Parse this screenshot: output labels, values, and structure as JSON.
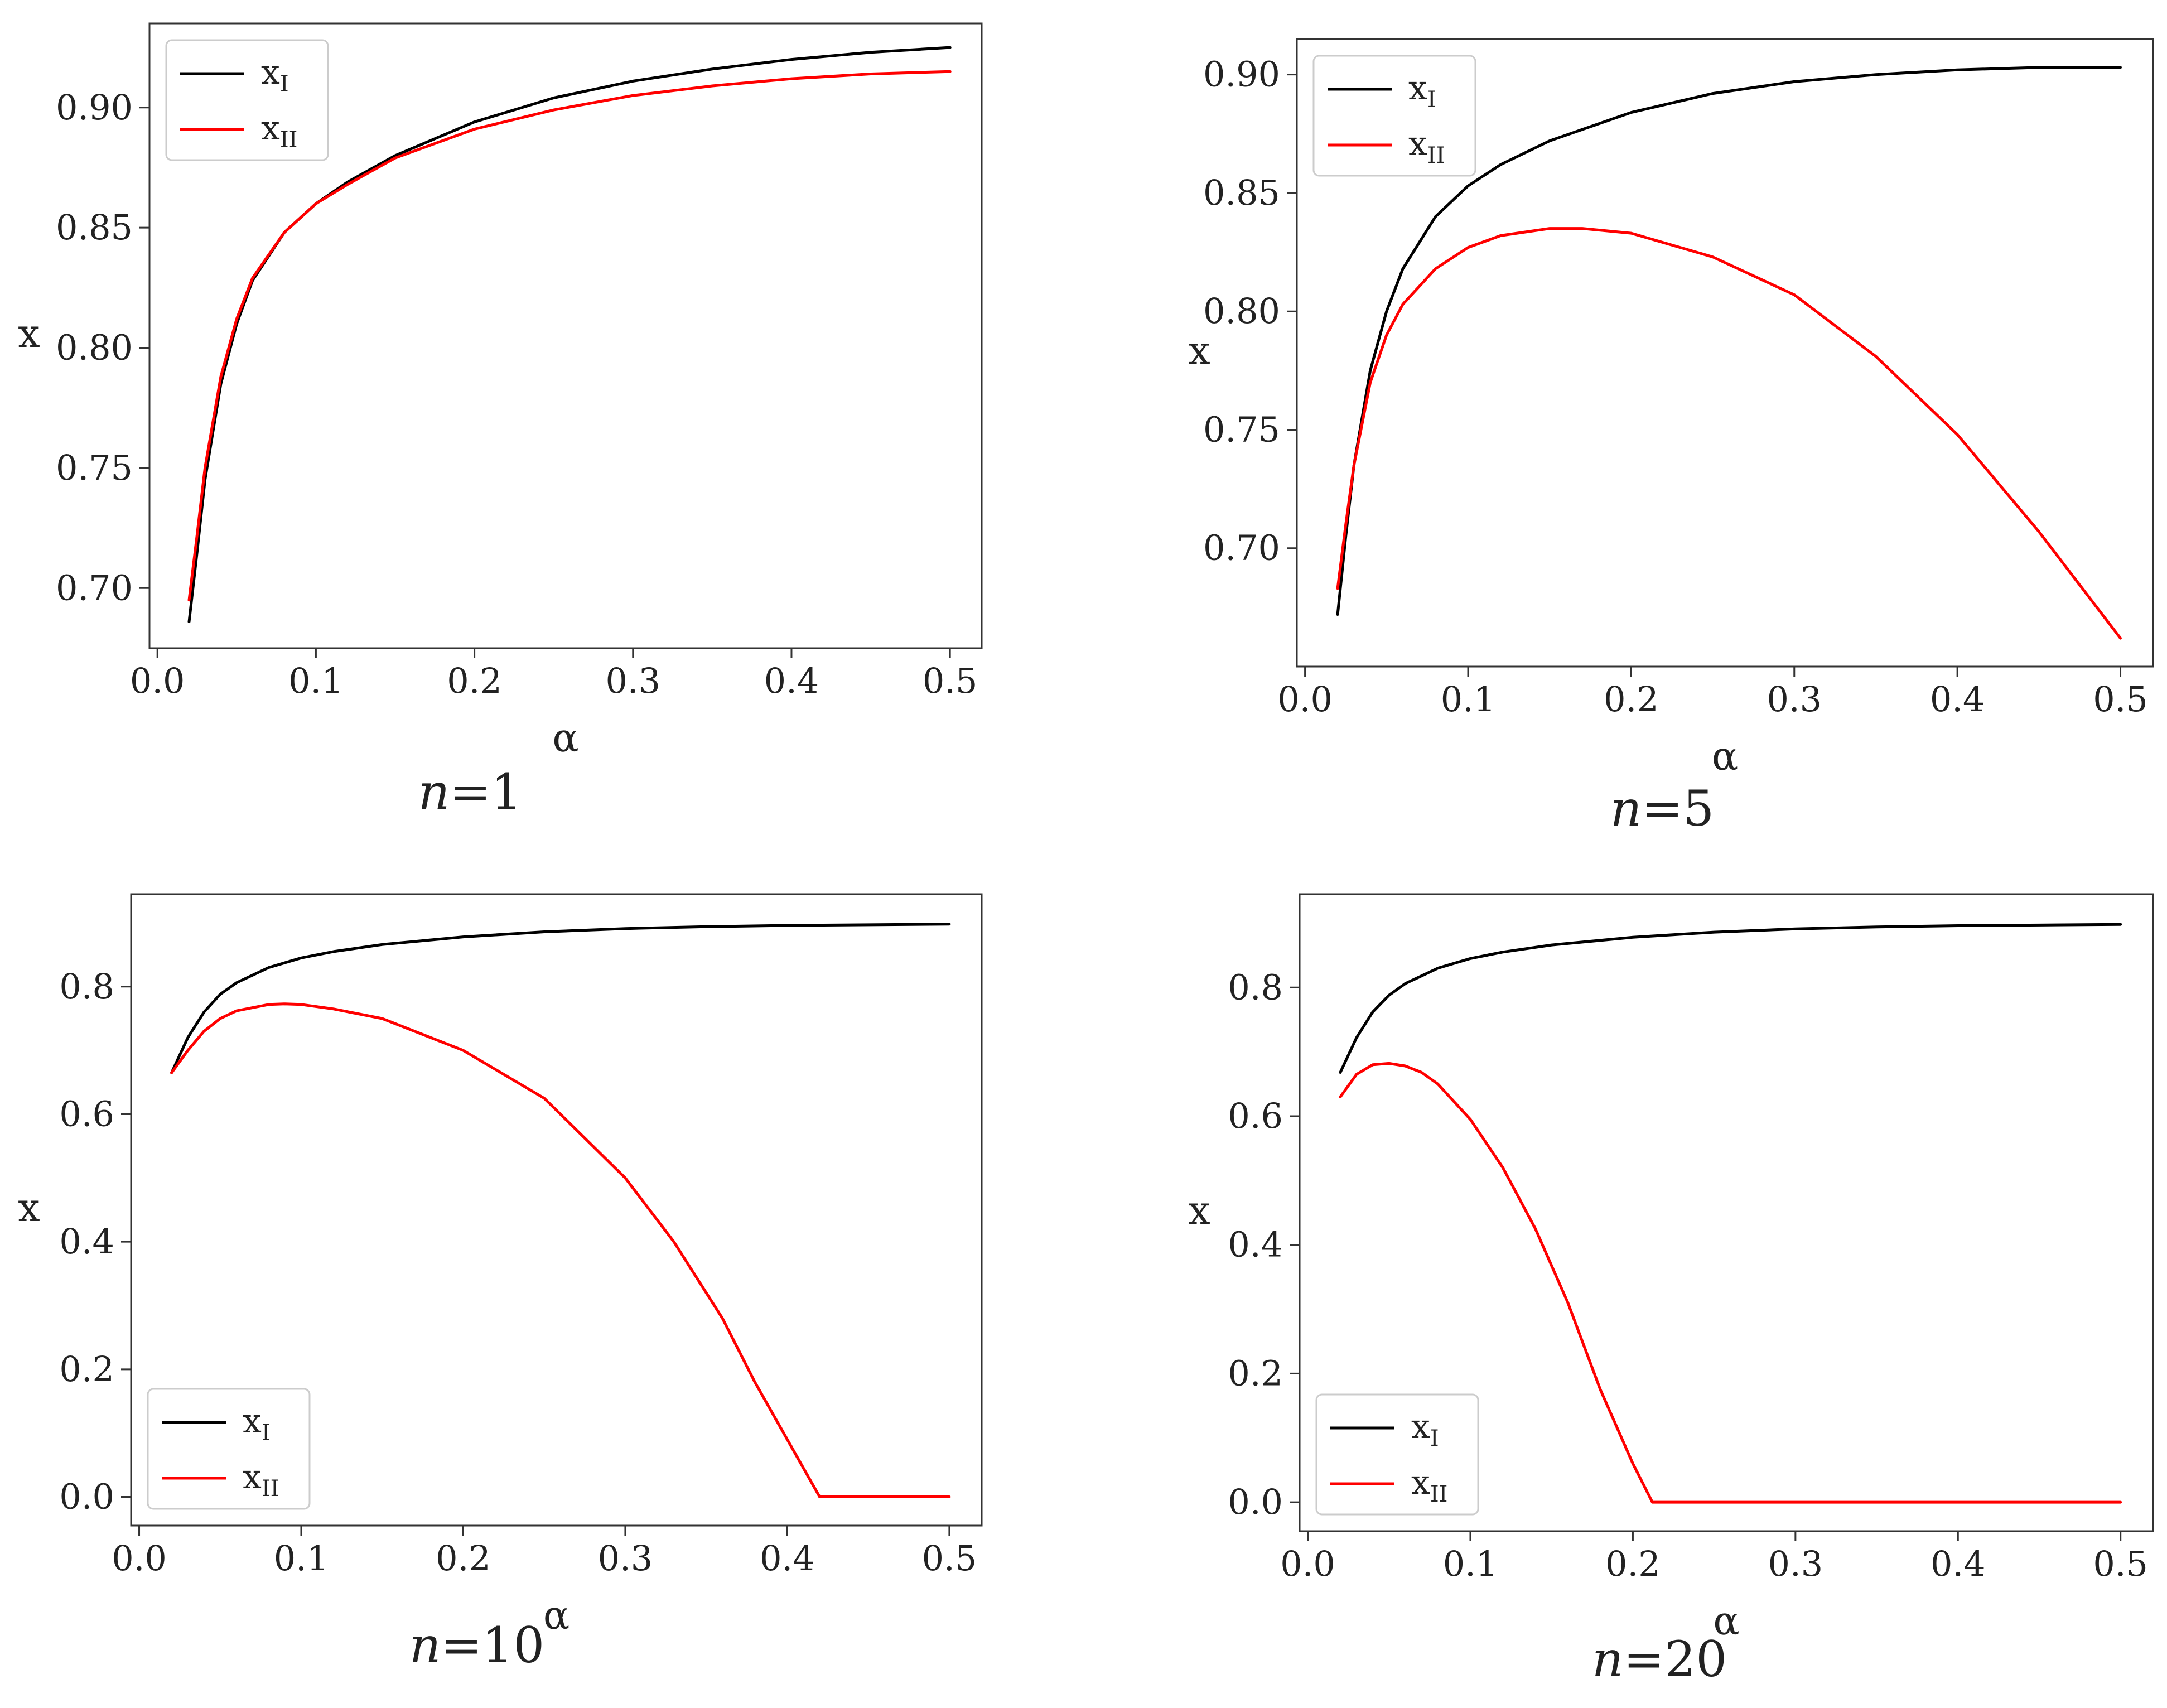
{
  "figure": {
    "colors": {
      "x_I": "#000000",
      "x_II": "#ff0000",
      "axes": "#333333",
      "legend_border": "#cccccc"
    }
  },
  "chart_data": [
    {
      "type": "line",
      "title_var": "n",
      "title_rest": "=1",
      "xlabel": "α",
      "ylabel": "x",
      "xlim": [
        -0.005,
        0.52
      ],
      "ylim": [
        0.675,
        0.935
      ],
      "xticks": [
        0.0,
        0.1,
        0.2,
        0.3,
        0.4,
        0.5
      ],
      "xtick_labels": [
        "0.0",
        "0.1",
        "0.2",
        "0.3",
        "0.4",
        "0.5"
      ],
      "yticks": [
        0.7,
        0.75,
        0.8,
        0.85,
        0.9
      ],
      "ytick_labels": [
        "0.70",
        "0.75",
        "0.80",
        "0.85",
        "0.90"
      ],
      "legend": {
        "position": "upper-left",
        "entries": [
          {
            "base": "x",
            "sub": "I"
          },
          {
            "base": "x",
            "sub": "II"
          }
        ]
      },
      "series": [
        {
          "sub": "I",
          "color": "#000000",
          "x": [
            0.02,
            0.025,
            0.03,
            0.04,
            0.05,
            0.06,
            0.08,
            0.1,
            0.12,
            0.15,
            0.2,
            0.25,
            0.3,
            0.35,
            0.4,
            0.45,
            0.5
          ],
          "y": [
            0.686,
            0.715,
            0.745,
            0.785,
            0.81,
            0.828,
            0.848,
            0.86,
            0.869,
            0.88,
            0.894,
            0.904,
            0.911,
            0.916,
            0.92,
            0.923,
            0.925
          ]
        },
        {
          "sub": "II",
          "color": "#ff0000",
          "x": [
            0.02,
            0.025,
            0.03,
            0.04,
            0.05,
            0.06,
            0.08,
            0.1,
            0.12,
            0.15,
            0.2,
            0.25,
            0.3,
            0.35,
            0.4,
            0.45,
            0.5
          ],
          "y": [
            0.695,
            0.722,
            0.75,
            0.788,
            0.812,
            0.829,
            0.848,
            0.86,
            0.868,
            0.879,
            0.891,
            0.899,
            0.905,
            0.909,
            0.912,
            0.914,
            0.915
          ]
        }
      ]
    },
    {
      "type": "line",
      "title_var": "n",
      "title_rest": "=5",
      "xlabel": "α",
      "ylabel": "x",
      "xlim": [
        -0.005,
        0.52
      ],
      "ylim": [
        0.65,
        0.915
      ],
      "xticks": [
        0.0,
        0.1,
        0.2,
        0.3,
        0.4,
        0.5
      ],
      "xtick_labels": [
        "0.0",
        "0.1",
        "0.2",
        "0.3",
        "0.4",
        "0.5"
      ],
      "yticks": [
        0.7,
        0.75,
        0.8,
        0.85,
        0.9
      ],
      "ytick_labels": [
        "0.70",
        "0.75",
        "0.80",
        "0.85",
        "0.90"
      ],
      "legend": {
        "position": "upper-left",
        "entries": [
          {
            "base": "x",
            "sub": "I"
          },
          {
            "base": "x",
            "sub": "II"
          }
        ]
      },
      "series": [
        {
          "sub": "I",
          "color": "#000000",
          "x": [
            0.02,
            0.025,
            0.03,
            0.04,
            0.05,
            0.06,
            0.08,
            0.1,
            0.12,
            0.15,
            0.2,
            0.25,
            0.3,
            0.35,
            0.4,
            0.45,
            0.5
          ],
          "y": [
            0.672,
            0.705,
            0.735,
            0.775,
            0.8,
            0.818,
            0.84,
            0.853,
            0.862,
            0.872,
            0.884,
            0.892,
            0.897,
            0.9,
            0.902,
            0.903,
            0.903
          ]
        },
        {
          "sub": "II",
          "color": "#ff0000",
          "x": [
            0.02,
            0.025,
            0.03,
            0.04,
            0.05,
            0.06,
            0.08,
            0.1,
            0.12,
            0.15,
            0.17,
            0.2,
            0.25,
            0.3,
            0.35,
            0.4,
            0.45,
            0.5
          ],
          "y": [
            0.683,
            0.71,
            0.735,
            0.77,
            0.79,
            0.803,
            0.818,
            0.827,
            0.832,
            0.835,
            0.835,
            0.833,
            0.823,
            0.807,
            0.781,
            0.748,
            0.707,
            0.662
          ]
        }
      ]
    },
    {
      "type": "line",
      "title_var": "n",
      "title_rest": "=10",
      "xlabel": "α",
      "ylabel": "x",
      "xlim": [
        -0.005,
        0.52
      ],
      "ylim": [
        -0.045,
        0.945
      ],
      "xticks": [
        0.0,
        0.1,
        0.2,
        0.3,
        0.4,
        0.5
      ],
      "xtick_labels": [
        "0.0",
        "0.1",
        "0.2",
        "0.3",
        "0.4",
        "0.5"
      ],
      "yticks": [
        0.0,
        0.2,
        0.4,
        0.6,
        0.8
      ],
      "ytick_labels": [
        "0.0",
        "0.2",
        "0.4",
        "0.6",
        "0.8"
      ],
      "legend": {
        "position": "lower-left",
        "entries": [
          {
            "base": "x",
            "sub": "I"
          },
          {
            "base": "x",
            "sub": "II"
          }
        ]
      },
      "series": [
        {
          "sub": "I",
          "color": "#000000",
          "x": [
            0.02,
            0.03,
            0.04,
            0.05,
            0.06,
            0.08,
            0.1,
            0.12,
            0.15,
            0.2,
            0.25,
            0.3,
            0.35,
            0.4,
            0.45,
            0.5
          ],
          "y": [
            0.665,
            0.72,
            0.76,
            0.788,
            0.806,
            0.83,
            0.845,
            0.855,
            0.866,
            0.878,
            0.886,
            0.891,
            0.894,
            0.896,
            0.897,
            0.898
          ]
        },
        {
          "sub": "II",
          "color": "#ff0000",
          "x": [
            0.02,
            0.03,
            0.04,
            0.05,
            0.06,
            0.08,
            0.09,
            0.1,
            0.12,
            0.15,
            0.2,
            0.25,
            0.3,
            0.33,
            0.36,
            0.38,
            0.4,
            0.42,
            0.45,
            0.5
          ],
          "y": [
            0.665,
            0.7,
            0.73,
            0.75,
            0.762,
            0.772,
            0.773,
            0.772,
            0.765,
            0.75,
            0.7,
            0.625,
            0.5,
            0.4,
            0.28,
            0.18,
            0.09,
            0.0,
            0.0,
            0.0
          ]
        }
      ]
    },
    {
      "type": "line",
      "title_var": "n",
      "title_rest": "=20",
      "xlabel": "α",
      "ylabel": "x",
      "xlim": [
        -0.005,
        0.52
      ],
      "ylim": [
        -0.045,
        0.945
      ],
      "xticks": [
        0.0,
        0.1,
        0.2,
        0.3,
        0.4,
        0.5
      ],
      "xtick_labels": [
        "0.0",
        "0.1",
        "0.2",
        "0.3",
        "0.4",
        "0.5"
      ],
      "yticks": [
        0.0,
        0.2,
        0.4,
        0.6,
        0.8
      ],
      "ytick_labels": [
        "0.0",
        "0.2",
        "0.4",
        "0.6",
        "0.8"
      ],
      "legend": {
        "position": "lower-left",
        "entries": [
          {
            "base": "x",
            "sub": "I"
          },
          {
            "base": "x",
            "sub": "II"
          }
        ]
      },
      "series": [
        {
          "sub": "I",
          "color": "#000000",
          "x": [
            0.02,
            0.03,
            0.04,
            0.05,
            0.06,
            0.08,
            0.1,
            0.12,
            0.15,
            0.2,
            0.25,
            0.3,
            0.35,
            0.4,
            0.45,
            0.5
          ],
          "y": [
            0.668,
            0.722,
            0.762,
            0.788,
            0.806,
            0.83,
            0.845,
            0.855,
            0.866,
            0.878,
            0.886,
            0.891,
            0.894,
            0.896,
            0.897,
            0.898
          ]
        },
        {
          "sub": "II",
          "color": "#ff0000",
          "x": [
            0.02,
            0.03,
            0.04,
            0.05,
            0.06,
            0.07,
            0.08,
            0.1,
            0.12,
            0.14,
            0.16,
            0.18,
            0.2,
            0.212,
            0.25,
            0.3,
            0.4,
            0.5
          ],
          "y": [
            0.63,
            0.665,
            0.68,
            0.682,
            0.678,
            0.668,
            0.65,
            0.595,
            0.52,
            0.425,
            0.31,
            0.175,
            0.06,
            0.0,
            0.0,
            0.0,
            0.0,
            0.0
          ]
        }
      ]
    }
  ]
}
